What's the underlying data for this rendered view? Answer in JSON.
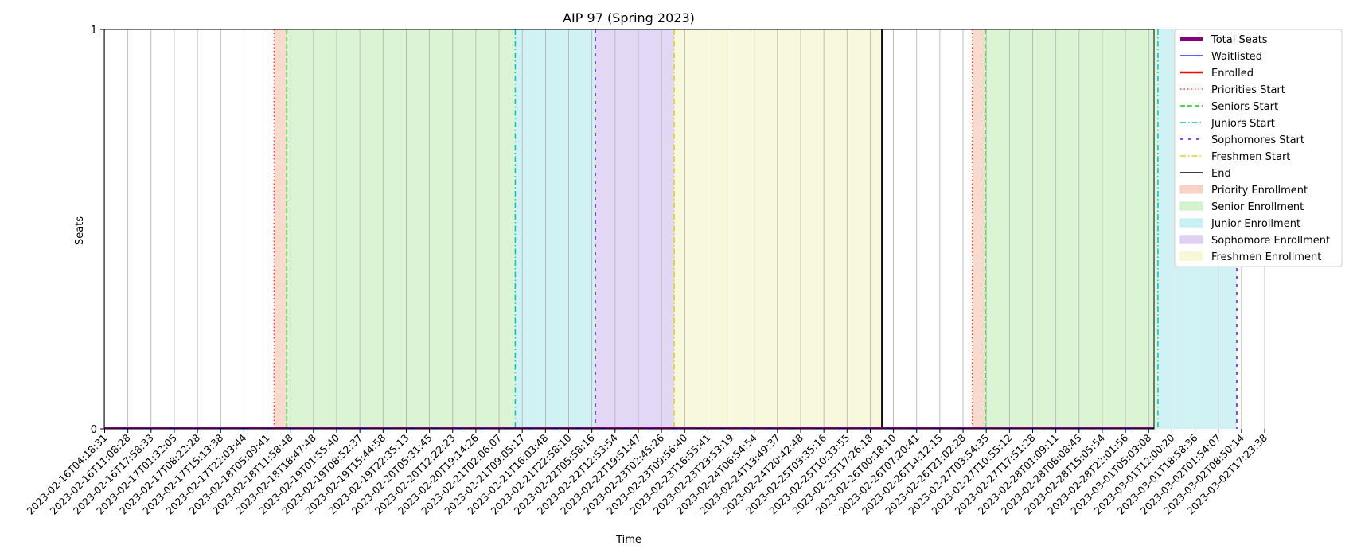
{
  "chart_data": {
    "type": "line",
    "title": "AIP 97 (Spring 2023)",
    "xlabel": "Time",
    "ylabel": "Seats",
    "ylim": [
      0,
      1
    ],
    "yticks": [
      "0",
      "1"
    ],
    "x_ticks": [
      "2023-02-16T04:18:31",
      "2023-02-16T11:08:28",
      "2023-02-16T17:58:33",
      "2023-02-17T01:32:05",
      "2023-02-17T08:22:28",
      "2023-02-17T15:13:38",
      "2023-02-17T22:03:44",
      "2023-02-18T05:09:41",
      "2023-02-18T11:58:48",
      "2023-02-18T18:47:48",
      "2023-02-19T01:55:40",
      "2023-02-19T08:52:37",
      "2023-02-19T15:44:58",
      "2023-02-19T22:35:13",
      "2023-02-20T05:31:45",
      "2023-02-20T12:22:23",
      "2023-02-20T19:14:26",
      "2023-02-21T02:06:07",
      "2023-02-21T09:05:17",
      "2023-02-21T16:03:48",
      "2023-02-21T22:58:10",
      "2023-02-22T05:58:16",
      "2023-02-22T12:53:54",
      "2023-02-22T19:51:47",
      "2023-02-23T02:45:26",
      "2023-02-23T09:56:40",
      "2023-02-23T16:55:41",
      "2023-02-23T23:53:19",
      "2023-02-24T06:54:54",
      "2023-02-24T13:49:37",
      "2023-02-24T20:42:48",
      "2023-02-25T03:35:16",
      "2023-02-25T10:33:55",
      "2023-02-25T17:26:18",
      "2023-02-26T00:18:10",
      "2023-02-26T07:20:41",
      "2023-02-26T14:12:15",
      "2023-02-26T21:02:28",
      "2023-02-27T03:54:35",
      "2023-02-27T10:55:12",
      "2023-02-27T17:51:28",
      "2023-02-28T01:09:11",
      "2023-02-28T08:08:45",
      "2023-02-28T15:05:54",
      "2023-02-28T22:01:56",
      "2023-03-01T05:03:08",
      "2023-03-01T12:00:20",
      "2023-03-01T18:58:36",
      "2023-03-02T01:54:07",
      "2023-03-02T08:50:14",
      "2023-03-02T17:23:38"
    ],
    "series": [
      {
        "name": "Total Seats",
        "color": "#800080",
        "values": "all 0"
      },
      {
        "name": "Waitlisted",
        "color": "#0000ff",
        "values": "all 0"
      },
      {
        "name": "Enrolled",
        "color": "#ff0000",
        "values": "all 0"
      }
    ],
    "markers": [
      {
        "name": "Priorities Start",
        "color": "#ff3b1f",
        "style": "dotted",
        "at": [
          7.3,
          37.4
        ]
      },
      {
        "name": "Seniors Start",
        "color": "#22bb22",
        "style": "dashed",
        "at": [
          7.85,
          37.95
        ]
      },
      {
        "name": "Juniors Start",
        "color": "#10bcbc",
        "style": "dashdot",
        "at": [
          17.7,
          45.4
        ]
      },
      {
        "name": "Sophomores Start",
        "color": "#6a10d4",
        "style": "loosedash",
        "at": [
          21.15,
          48.8
        ]
      },
      {
        "name": "Freshmen Start",
        "color": "#d8d020",
        "style": "dashdot",
        "at": [
          24.55
        ]
      },
      {
        "name": "End",
        "color": "#000000",
        "style": "solid",
        "at": [
          33.5
        ]
      }
    ],
    "regions": [
      {
        "name": "Priority Enrollment",
        "color": "#f4c6b4",
        "spans": [
          [
            7.3,
            7.85
          ],
          [
            37.4,
            37.95
          ]
        ]
      },
      {
        "name": "Senior Enrollment",
        "color": "#c7efbd",
        "spans": [
          [
            7.85,
            17.7
          ],
          [
            37.95,
            45.4
          ]
        ]
      },
      {
        "name": "Junior Enrollment",
        "color": "#b9ebf0",
        "spans": [
          [
            17.7,
            21.15
          ],
          [
            45.4,
            48.8
          ]
        ]
      },
      {
        "name": "Sophomore Enrollment",
        "color": "#d4c1f1",
        "spans": [
          [
            21.15,
            24.55
          ]
        ]
      },
      {
        "name": "Freshmen Enrollment",
        "color": "#f4f5c9",
        "spans": [
          [
            24.55,
            33.5
          ]
        ]
      }
    ],
    "legend_position": "outside-right-top",
    "grid": "vertical"
  }
}
